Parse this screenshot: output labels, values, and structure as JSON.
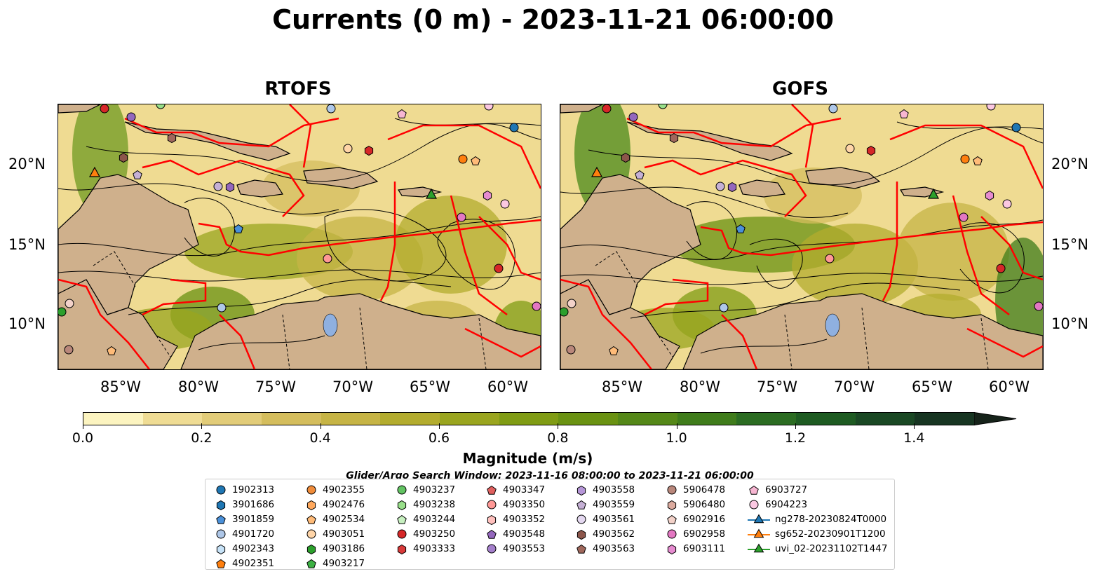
{
  "title": "Currents (0 m) - 2023-11-21 06:00:00",
  "panels": [
    {
      "title": "RTOFS"
    },
    {
      "title": "GOFS"
    }
  ],
  "axes": {
    "lat_labels": [
      "20°N",
      "15°N",
      "10°N"
    ],
    "lon_labels": [
      "85°W",
      "80°W",
      "75°W",
      "70°W",
      "65°W",
      "60°W"
    ]
  },
  "colorbar": {
    "label": "Magnitude (m/s)",
    "ticks": [
      "0.0",
      "0.2",
      "0.4",
      "0.6",
      "0.8",
      "1.0",
      "1.2",
      "1.4"
    ],
    "range": [
      0.0,
      1.5
    ],
    "colors": [
      "#fcf4c0",
      "#efdc94",
      "#e2cc79",
      "#d4bd5d",
      "#c6b445",
      "#b3ac2e",
      "#9aa51f",
      "#809c14",
      "#6a9212",
      "#558818",
      "#3f7c1b",
      "#2b6c22",
      "#1e5b22",
      "#1a4824",
      "#173522",
      "#16231a"
    ]
  },
  "search_window": "Glider/Argo Search Window: 2023-11-16 08:00:00 to 2023-11-21 06:00:00",
  "legend": [
    [
      {
        "id": "1902313",
        "marker": "circle",
        "color": "#1f77b4"
      },
      {
        "id": "3901686",
        "marker": "hexagon",
        "color": "#1f77b4"
      },
      {
        "id": "3901859",
        "marker": "pentagon",
        "color": "#4a90d9"
      },
      {
        "id": "4901720",
        "marker": "circle",
        "color": "#aec7e8"
      },
      {
        "id": "4902343",
        "marker": "hexagon",
        "color": "#c6e2f7"
      },
      {
        "id": "4902351",
        "marker": "pentagon",
        "color": "#ff7f0e"
      }
    ],
    [
      {
        "id": "4902355",
        "marker": "circle",
        "color": "#f08c3a"
      },
      {
        "id": "4902476",
        "marker": "hexagon",
        "color": "#ffa85c"
      },
      {
        "id": "4902534",
        "marker": "pentagon",
        "color": "#ffbb78"
      },
      {
        "id": "4903051",
        "marker": "circle",
        "color": "#ffd5a8"
      },
      {
        "id": "4903186",
        "marker": "hexagon",
        "color": "#2ca02c"
      },
      {
        "id": "4903217",
        "marker": "pentagon",
        "color": "#3cb043"
      }
    ],
    [
      {
        "id": "4903237",
        "marker": "circle",
        "color": "#62c362"
      },
      {
        "id": "4903238",
        "marker": "hexagon",
        "color": "#98df8a"
      },
      {
        "id": "4903244",
        "marker": "pentagon",
        "color": "#c7f0c0"
      },
      {
        "id": "4903250",
        "marker": "circle",
        "color": "#d62728"
      },
      {
        "id": "4903333",
        "marker": "hexagon",
        "color": "#d93a3a"
      }
    ],
    [
      {
        "id": "4903347",
        "marker": "pentagon",
        "color": "#e0605f"
      },
      {
        "id": "4903350",
        "marker": "circle",
        "color": "#ff9896"
      },
      {
        "id": "4903352",
        "marker": "hexagon",
        "color": "#ffc0bd"
      },
      {
        "id": "4903548",
        "marker": "pentagon",
        "color": "#9467bd"
      },
      {
        "id": "4903553",
        "marker": "circle",
        "color": "#a47fcb"
      }
    ],
    [
      {
        "id": "4903558",
        "marker": "hexagon",
        "color": "#b696d8"
      },
      {
        "id": "4903559",
        "marker": "pentagon",
        "color": "#c5b0d5"
      },
      {
        "id": "4903561",
        "marker": "circle",
        "color": "#e4d8f0"
      },
      {
        "id": "4903562",
        "marker": "hexagon",
        "color": "#8c564b"
      },
      {
        "id": "4903563",
        "marker": "pentagon",
        "color": "#a0685c"
      }
    ],
    [
      {
        "id": "5906478",
        "marker": "circle",
        "color": "#b9877b"
      },
      {
        "id": "5906480",
        "marker": "hexagon",
        "color": "#dcab9f"
      },
      {
        "id": "6902916",
        "marker": "pentagon",
        "color": "#f3d2c9"
      },
      {
        "id": "6902958",
        "marker": "circle",
        "color": "#e377c2"
      },
      {
        "id": "6903111",
        "marker": "hexagon",
        "color": "#e68bd0"
      }
    ],
    [
      {
        "id": "6903727",
        "marker": "pentagon",
        "color": "#f7b6d2"
      },
      {
        "id": "6904223",
        "marker": "circle",
        "color": "#fbc8e2"
      },
      {
        "id": "ng278-20230824T0000",
        "marker": "triangle-line",
        "color": "#1f77b4"
      },
      {
        "id": "sg652-20230901T1200",
        "marker": "triangle-line",
        "color": "#ff7f0e"
      },
      {
        "id": "uvi_02-20231102T1447",
        "marker": "triangle-line",
        "color": "#2ca02c"
      }
    ]
  ]
}
